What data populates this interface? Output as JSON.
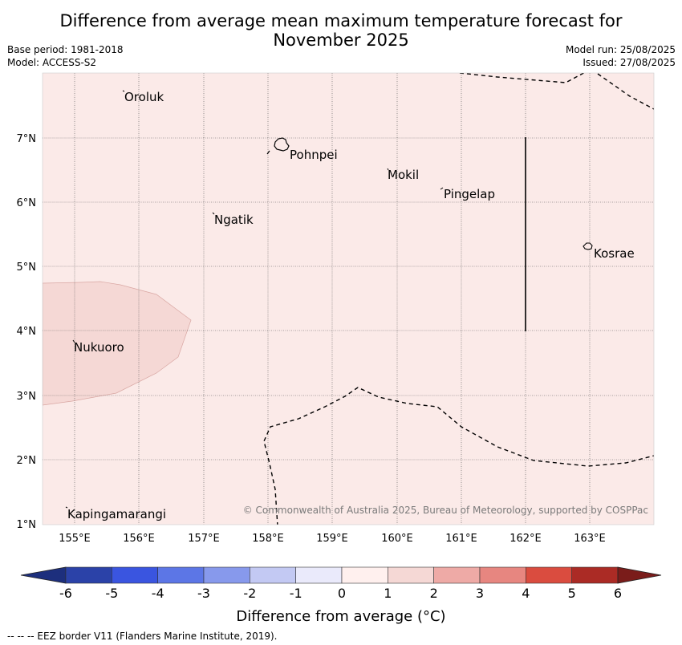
{
  "title": {
    "line1": "Difference from average mean maximum temperature forecast for",
    "line2": "November 2025"
  },
  "meta": {
    "base_period": "Base period: 1981-2018",
    "model": "Model: ACCESS-S2",
    "model_run": "Model run: 25/08/2025",
    "issued": "Issued: 27/08/2025"
  },
  "map": {
    "lon_ticks": [
      "155°E",
      "156°E",
      "157°E",
      "158°E",
      "159°E",
      "160°E",
      "161°E",
      "162°E",
      "163°E"
    ],
    "lat_ticks": [
      "7°N",
      "6°N",
      "5°N",
      "4°N",
      "3°N",
      "2°N",
      "1°N"
    ],
    "places": {
      "oroluk": "Oroluk",
      "pohnpei": "Pohnpei",
      "mokil": "Mokil",
      "pingelap": "Pingelap",
      "ngatik": "Ngatik",
      "kosrae": "Kosrae",
      "nukuoro": "Nukuoro",
      "kapingamarangi": "Kapingamarangi"
    },
    "background_color": "#fbeae8",
    "anomaly_region_color": "#f5d8d5",
    "copyright": "© Commonwealth of Australia 2025, Bureau of Meteorology, supported by COSPPac"
  },
  "colorbar": {
    "labels": [
      "-6",
      "-5",
      "-4",
      "-3",
      "-2",
      "-1",
      "0",
      "1",
      "2",
      "3",
      "4",
      "5",
      "6"
    ],
    "colors": [
      "#2b42a8",
      "#3a55e0",
      "#5c76e6",
      "#8799ec",
      "#c3c9f3",
      "#eaeafb",
      "#fff0ee",
      "#f5d8d5",
      "#eeaaa6",
      "#e78680",
      "#da4c3f",
      "#ab2b25"
    ],
    "extend_low_color": "#1d2f7d",
    "extend_high_color": "#7a1c1a",
    "title": "Difference from average (°C)"
  },
  "footer": {
    "eez_note": "--  --  -- EEZ border V11 (Flanders Marine Institute, 2019)."
  }
}
